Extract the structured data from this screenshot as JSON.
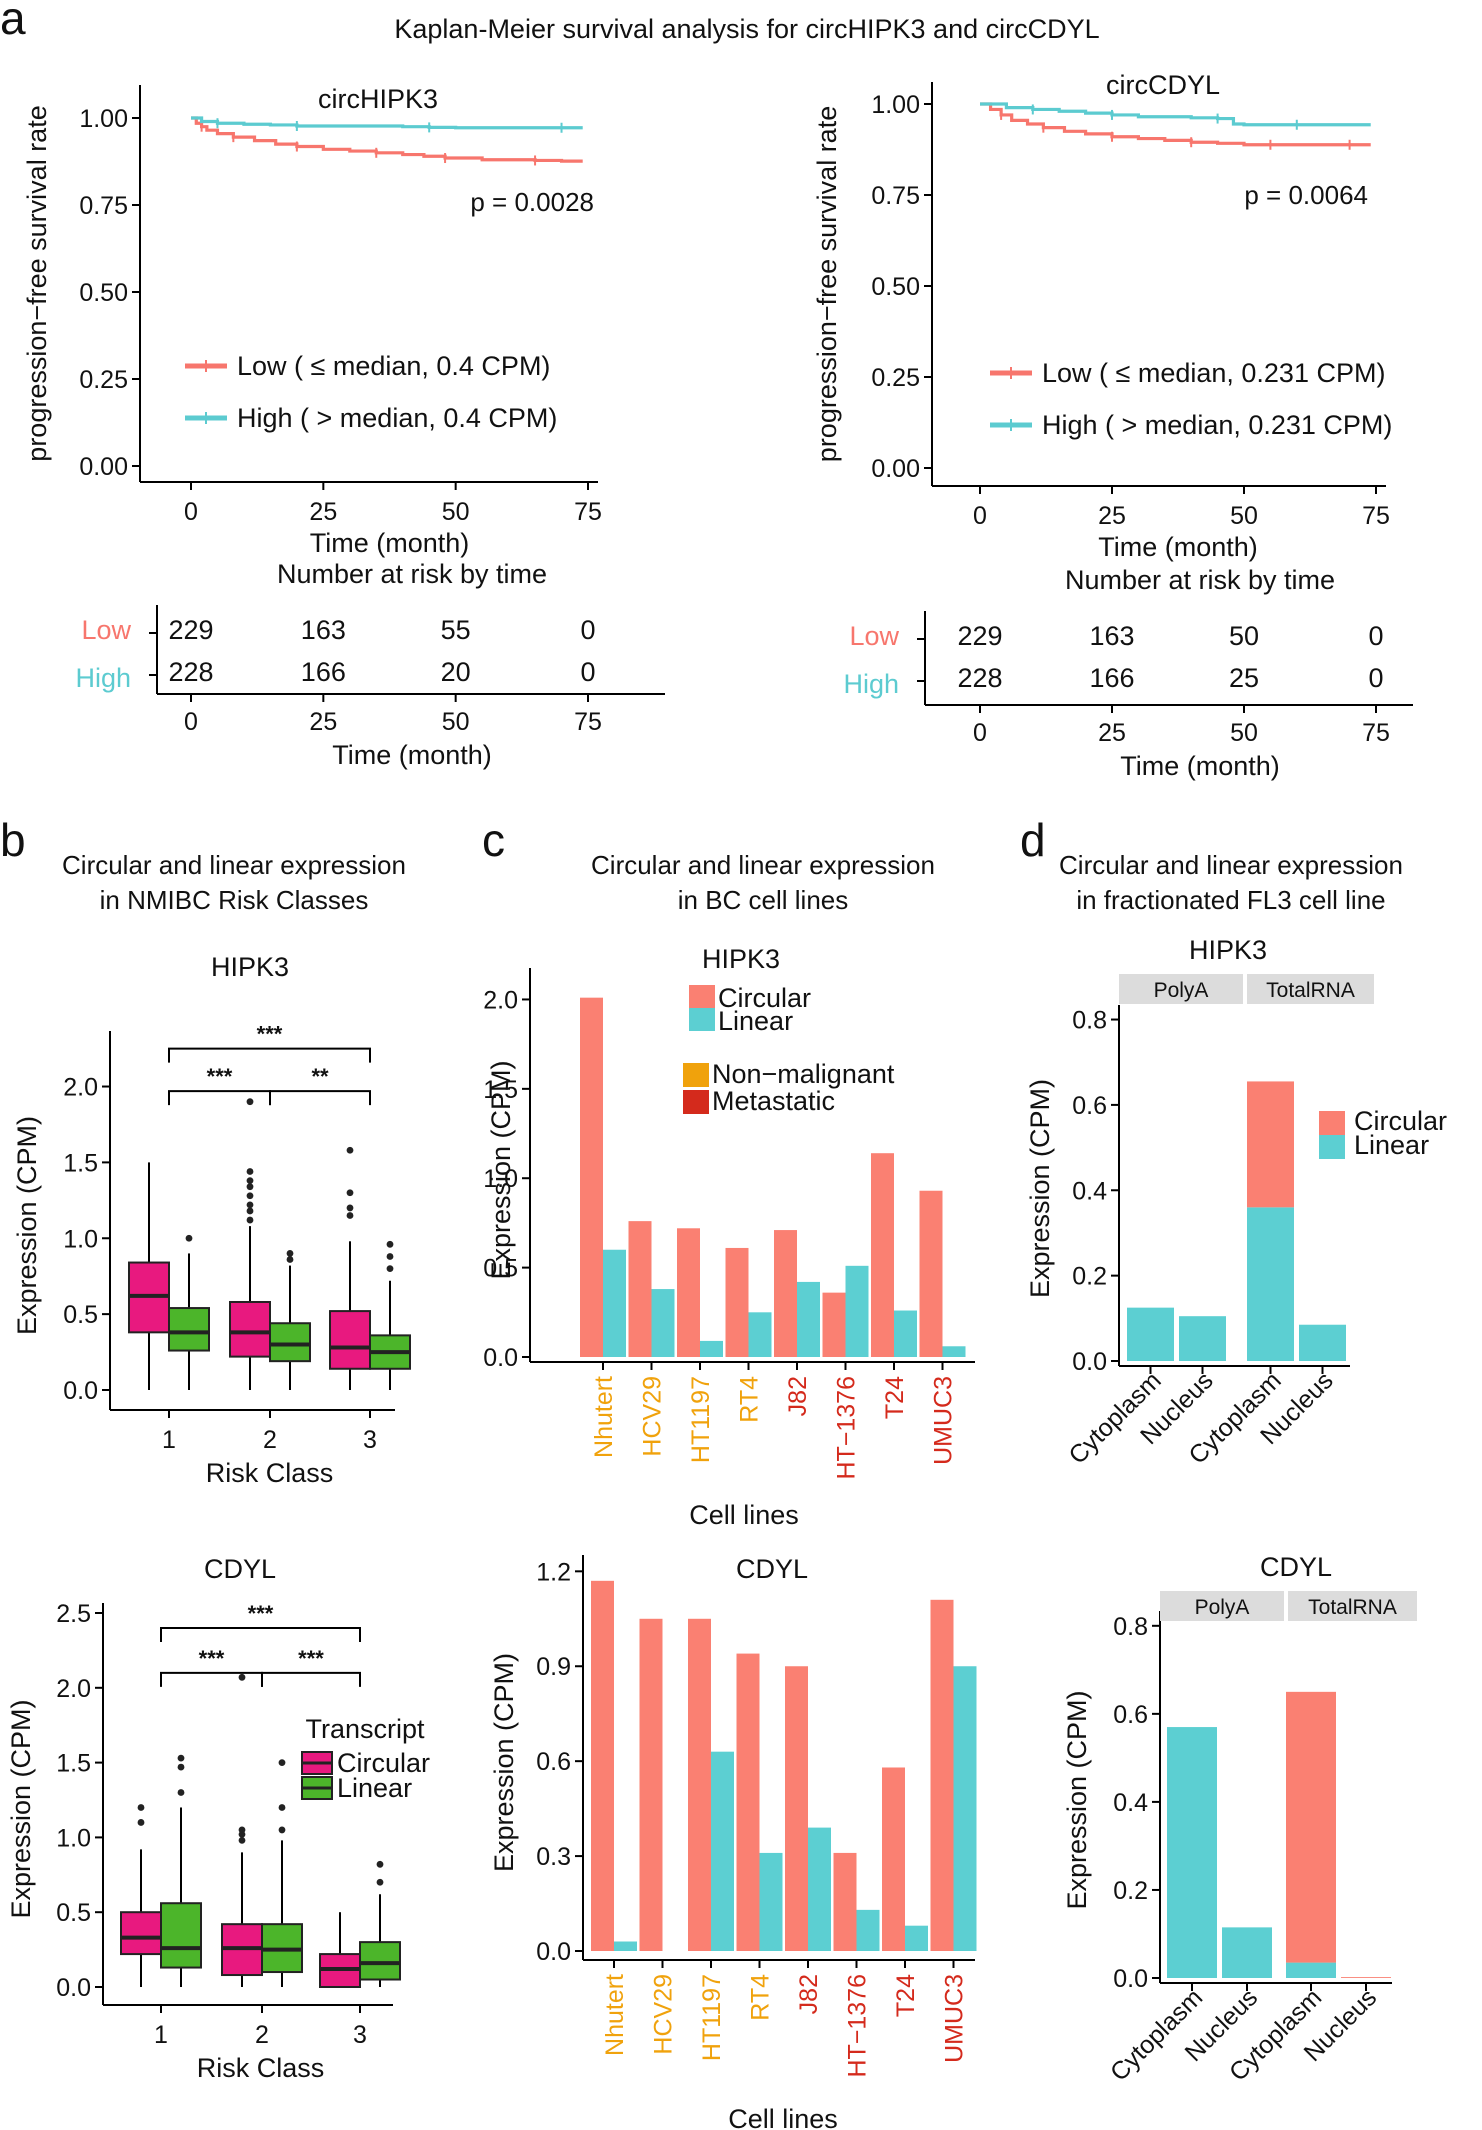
{
  "colors": {
    "low": "#f7766d",
    "high": "#5ccbd0",
    "circular_bar": "#fa8072",
    "linear_bar": "#5ccfd2",
    "box_circular": "#e8197f",
    "box_linear": "#4cb52a",
    "non_malignant": "#f0a20c",
    "metastatic": "#d42a1c",
    "strip": "#dcdcdc"
  },
  "panel_labels": {
    "a": "a",
    "b": "b",
    "c": "c",
    "d": "d"
  },
  "chart_data": [
    {
      "id": "km_circHIPK3",
      "type": "line",
      "figure_title": "Kaplan-Meier survival analysis for circHIPK3 and circCDYL",
      "title": "circHIPK3",
      "xlabel": "Time (month)",
      "ylabel": "progression−free survival rate",
      "xlim": [
        0,
        75
      ],
      "ylim": [
        0,
        1
      ],
      "xticks": [
        "0",
        "25",
        "50",
        "75"
      ],
      "yticks": [
        "0.00",
        "0.25",
        "0.50",
        "0.75",
        "1.00"
      ],
      "pvalue": "p = 0.0028",
      "legend": [
        "Low ( ≤ median, 0.4 CPM)",
        "High ( > median, 0.4 CPM)"
      ],
      "series": [
        {
          "name": "Low",
          "x": [
            0,
            1,
            2,
            3,
            5,
            8,
            12,
            16,
            20,
            25,
            30,
            35,
            40,
            44,
            48,
            55,
            60,
            65,
            70,
            74
          ],
          "y": [
            1,
            0.985,
            0.975,
            0.965,
            0.955,
            0.945,
            0.935,
            0.925,
            0.918,
            0.91,
            0.905,
            0.9,
            0.895,
            0.89,
            0.885,
            0.88,
            0.88,
            0.878,
            0.876,
            0.876
          ]
        },
        {
          "name": "High",
          "x": [
            0,
            2,
            5,
            10,
            15,
            20,
            30,
            40,
            45,
            50,
            60,
            70,
            74
          ],
          "y": [
            1,
            0.99,
            0.985,
            0.982,
            0.98,
            0.977,
            0.977,
            0.975,
            0.973,
            0.972,
            0.972,
            0.972,
            0.972
          ]
        }
      ],
      "risk_table": {
        "title": "Number at risk by time",
        "rows": [
          {
            "label": "Low",
            "values": [
              "229",
              "163",
              "55",
              "0"
            ]
          },
          {
            "label": "High",
            "values": [
              "228",
              "166",
              "20",
              "0"
            ]
          }
        ],
        "xticks": [
          "0",
          "25",
          "50",
          "75"
        ],
        "xlabel": "Time (month)"
      }
    },
    {
      "id": "km_circCDYL",
      "type": "line",
      "title": "circCDYL",
      "xlabel": "Time (month)",
      "ylabel": "progression−free survival rate",
      "xlim": [
        0,
        75
      ],
      "ylim": [
        0,
        1
      ],
      "xticks": [
        "0",
        "25",
        "50",
        "75"
      ],
      "yticks": [
        "0.00",
        "0.25",
        "0.50",
        "0.75",
        "1.00"
      ],
      "pvalue": "p = 0.0064",
      "legend": [
        "Low ( ≤ median, 0.231 CPM)",
        "High ( > median, 0.231 CPM)"
      ],
      "series": [
        {
          "name": "Low",
          "x": [
            0,
            2,
            4,
            6,
            9,
            12,
            16,
            20,
            25,
            30,
            35,
            40,
            45,
            50,
            55,
            60,
            65,
            70,
            74
          ],
          "y": [
            1,
            0.985,
            0.97,
            0.955,
            0.945,
            0.935,
            0.925,
            0.918,
            0.91,
            0.905,
            0.9,
            0.895,
            0.892,
            0.888,
            0.888,
            0.888,
            0.888,
            0.888,
            0.888
          ]
        },
        {
          "name": "High",
          "x": [
            0,
            5,
            10,
            15,
            20,
            25,
            30,
            40,
            45,
            48,
            50,
            60,
            70,
            74
          ],
          "y": [
            1,
            0.99,
            0.985,
            0.98,
            0.975,
            0.97,
            0.965,
            0.962,
            0.96,
            0.945,
            0.943,
            0.943,
            0.943,
            0.943
          ]
        }
      ],
      "risk_table": {
        "title": "Number at risk by time",
        "rows": [
          {
            "label": "Low",
            "values": [
              "229",
              "163",
              "50",
              "0"
            ]
          },
          {
            "label": "High",
            "values": [
              "228",
              "166",
              "25",
              "0"
            ]
          }
        ],
        "xticks": [
          "0",
          "25",
          "50",
          "75"
        ],
        "xlabel": "Time (month)"
      }
    },
    {
      "id": "box_hipk3",
      "type": "box",
      "section_title": [
        "Circular and linear expression",
        "in NMIBC Risk Classes"
      ],
      "title": "HIPK3",
      "xlabel": "Risk Class",
      "ylabel": "Expression (CPM)",
      "ylim": [
        0,
        2.3
      ],
      "yticks": [
        0,
        0.5,
        1,
        1.5,
        2
      ],
      "ytick_labels": [
        "0.0",
        "0.5",
        "1.0",
        "1.5",
        "2.0"
      ],
      "categories": [
        "1",
        "2",
        "3"
      ],
      "series": [
        {
          "name": "Circular",
          "boxes": [
            {
              "min": 0.0,
              "q1": 0.38,
              "median": 0.62,
              "q3": 0.84,
              "max": 1.5,
              "outliers": []
            },
            {
              "min": 0.0,
              "q1": 0.22,
              "median": 0.38,
              "q3": 0.58,
              "max": 1.08,
              "outliers": [
                1.12,
                1.18,
                1.22,
                1.28,
                1.34,
                1.38,
                1.44,
                1.9
              ]
            },
            {
              "min": 0.0,
              "q1": 0.14,
              "median": 0.28,
              "q3": 0.52,
              "max": 0.98,
              "outliers": [
                1.15,
                1.2,
                1.3,
                1.58
              ]
            }
          ]
        },
        {
          "name": "Linear",
          "boxes": [
            {
              "min": 0.0,
              "q1": 0.26,
              "median": 0.38,
              "q3": 0.54,
              "max": 0.9,
              "outliers": [
                1.0
              ]
            },
            {
              "min": 0.0,
              "q1": 0.19,
              "median": 0.3,
              "q3": 0.44,
              "max": 0.82,
              "outliers": [
                0.86,
                0.9
              ]
            },
            {
              "min": 0.0,
              "q1": 0.14,
              "median": 0.25,
              "q3": 0.36,
              "max": 0.72,
              "outliers": [
                0.8,
                0.88,
                0.96
              ]
            }
          ]
        }
      ],
      "brackets": [
        {
          "from": 0,
          "to": 1,
          "y": 1.97,
          "label": "***"
        },
        {
          "from": 1,
          "to": 2,
          "y": 1.97,
          "label": "**"
        },
        {
          "from": 0,
          "to": 2,
          "y": 2.25,
          "label": "***"
        }
      ]
    },
    {
      "id": "box_cdyl",
      "type": "box",
      "title": "CDYL",
      "xlabel": "Risk Class",
      "ylabel": "Expression (CPM)",
      "ylim": [
        0,
        2.5
      ],
      "yticks": [
        0,
        0.5,
        1,
        1.5,
        2,
        2.5
      ],
      "ytick_labels": [
        "0.0",
        "0.5",
        "1.0",
        "1.5",
        "2.0",
        "2.5"
      ],
      "categories": [
        "1",
        "2",
        "3"
      ],
      "legend_title": "Transcript",
      "legend": [
        "Circular",
        "Linear"
      ],
      "series": [
        {
          "name": "Circular",
          "boxes": [
            {
              "min": 0.0,
              "q1": 0.22,
              "median": 0.33,
              "q3": 0.5,
              "max": 0.92,
              "outliers": [
                1.1,
                1.2
              ]
            },
            {
              "min": 0.0,
              "q1": 0.08,
              "median": 0.26,
              "q3": 0.42,
              "max": 0.9,
              "outliers": [
                0.98,
                1.02,
                1.05,
                2.07
              ]
            },
            {
              "min": 0.0,
              "q1": 0.0,
              "median": 0.12,
              "q3": 0.22,
              "max": 0.5,
              "outliers": []
            }
          ]
        },
        {
          "name": "Linear",
          "boxes": [
            {
              "min": 0.0,
              "q1": 0.13,
              "median": 0.26,
              "q3": 0.56,
              "max": 1.2,
              "outliers": [
                1.3,
                1.47,
                1.53
              ]
            },
            {
              "min": 0.0,
              "q1": 0.1,
              "median": 0.25,
              "q3": 0.42,
              "max": 0.98,
              "outliers": [
                1.05,
                1.2,
                1.5
              ]
            },
            {
              "min": 0.0,
              "q1": 0.05,
              "median": 0.16,
              "q3": 0.3,
              "max": 0.62,
              "outliers": [
                0.7,
                0.82
              ]
            }
          ]
        }
      ],
      "brackets": [
        {
          "from": 0,
          "to": 1,
          "y": 2.1,
          "label": "***"
        },
        {
          "from": 1,
          "to": 2,
          "y": 2.1,
          "label": "***"
        },
        {
          "from": 0,
          "to": 2,
          "y": 2.4,
          "label": "***"
        }
      ]
    },
    {
      "id": "bar_hipk3_lines",
      "type": "bar",
      "section_title": [
        "Circular and linear expression",
        "in BC cell lines"
      ],
      "title": "HIPK3",
      "xlabel": "Cell lines",
      "ylabel": "Expression (CPM)",
      "ylim": [
        0,
        2.12
      ],
      "yticks": [
        0,
        0.5,
        1,
        1.5,
        2
      ],
      "ytick_labels": [
        "0.0",
        "0.5",
        "1.0",
        "1.5",
        "2.0"
      ],
      "categories": [
        "Nhutert",
        "HCV29",
        "HT1197",
        "RT4",
        "J82",
        "HT−1376",
        "T24",
        "UMUC3"
      ],
      "category_groups": [
        "non_malignant",
        "non_malignant",
        "non_malignant",
        "non_malignant",
        "metastatic",
        "metastatic",
        "metastatic",
        "metastatic"
      ],
      "legend": [
        "Circular",
        "Linear"
      ],
      "legend2": [
        "Non−malignant",
        "Metastatic"
      ],
      "series": [
        {
          "name": "Circular",
          "values": [
            2.01,
            0.76,
            0.72,
            0.61,
            0.71,
            0.36,
            1.14,
            0.93
          ]
        },
        {
          "name": "Linear",
          "values": [
            0.6,
            0.38,
            0.09,
            0.25,
            0.42,
            0.51,
            0.26,
            0.06
          ]
        }
      ]
    },
    {
      "id": "bar_cdyl_lines",
      "type": "bar",
      "title": "CDYL",
      "xlabel": "Cell lines",
      "ylabel": "Expression (CPM)",
      "ylim": [
        0,
        1.22
      ],
      "yticks": [
        0,
        0.3,
        0.6,
        0.9,
        1.2
      ],
      "ytick_labels": [
        "0.0",
        "0.3",
        "0.6",
        "0.9",
        "1.2"
      ],
      "categories": [
        "Nhutert",
        "HCV29",
        "HT1197",
        "RT4",
        "J82",
        "HT−1376",
        "T24",
        "UMUC3"
      ],
      "category_groups": [
        "non_malignant",
        "non_malignant",
        "non_malignant",
        "non_malignant",
        "metastatic",
        "metastatic",
        "metastatic",
        "metastatic"
      ],
      "series": [
        {
          "name": "Circular",
          "values": [
            1.17,
            1.05,
            1.05,
            0.94,
            0.9,
            0.31,
            0.58,
            1.11
          ]
        },
        {
          "name": "Linear",
          "values": [
            0.03,
            0.0,
            0.63,
            0.31,
            0.39,
            0.13,
            0.08,
            0.9
          ]
        }
      ]
    },
    {
      "id": "bar_hipk3_frac",
      "type": "bar",
      "stacked": true,
      "section_title": [
        "Circular and linear expression",
        "in fractionated FL3 cell line"
      ],
      "title": "HIPK3",
      "facets": [
        "PolyA",
        "TotalRNA"
      ],
      "ylabel": "Expression (CPM)",
      "ylim": [
        0,
        0.82
      ],
      "yticks": [
        0,
        0.2,
        0.4,
        0.6,
        0.8
      ],
      "ytick_labels": [
        "0.0",
        "0.2",
        "0.4",
        "0.6",
        "0.8"
      ],
      "categories": [
        "Cytoplasm",
        "Nucleus",
        "Cytoplasm",
        "Nucleus"
      ],
      "category_facet": [
        0,
        0,
        1,
        1
      ],
      "legend": [
        "Circular",
        "Linear"
      ],
      "series": [
        {
          "name": "Linear",
          "values": [
            0.125,
            0.105,
            0.36,
            0.085
          ]
        },
        {
          "name": "Circular",
          "values": [
            0.0,
            0.0,
            0.295,
            0.0
          ]
        }
      ]
    },
    {
      "id": "bar_cdyl_frac",
      "type": "bar",
      "stacked": true,
      "title": "CDYL",
      "facets": [
        "PolyA",
        "TotalRNA"
      ],
      "ylabel": "Expression (CPM)",
      "ylim": [
        0,
        0.82
      ],
      "yticks": [
        0,
        0.2,
        0.4,
        0.6,
        0.8
      ],
      "ytick_labels": [
        "0.0",
        "0.2",
        "0.4",
        "0.6",
        "0.8"
      ],
      "categories": [
        "Cytoplasm",
        "Nucleus",
        "Cytoplasm",
        "Nucleus"
      ],
      "category_facet": [
        0,
        0,
        1,
        1
      ],
      "series": [
        {
          "name": "Linear",
          "values": [
            0.57,
            0.115,
            0.035,
            0.0
          ]
        },
        {
          "name": "Circular",
          "values": [
            0.0,
            0.0,
            0.615,
            0.002
          ]
        }
      ]
    }
  ]
}
